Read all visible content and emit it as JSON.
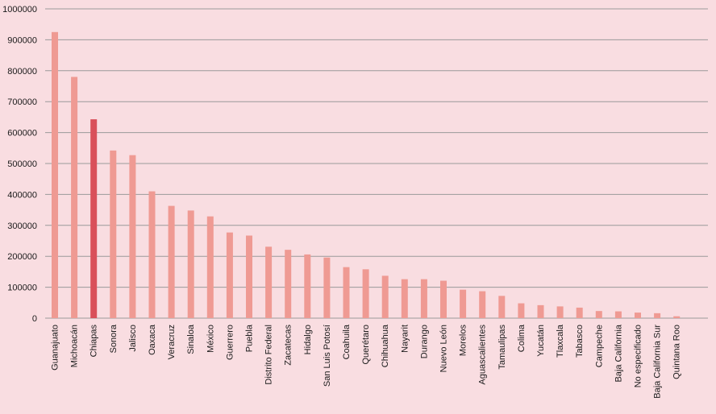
{
  "chart_data": {
    "type": "bar",
    "title": "",
    "xlabel": "",
    "ylabel": "",
    "ylim": [
      0,
      1000000
    ],
    "yticks": [
      0,
      100000,
      200000,
      300000,
      400000,
      500000,
      600000,
      700000,
      800000,
      900000,
      1000000
    ],
    "ytick_labels": [
      "0",
      "100000",
      "200000",
      "300000",
      "400000",
      "500000",
      "600000",
      "700000",
      "800000",
      "900000",
      "1000000"
    ],
    "grid": true,
    "legend": "none",
    "categories": [
      "Guanajuato",
      "Michoacán",
      "Chiapas",
      "Sonora",
      "Jalisco",
      "Oaxaca",
      "Veracruz",
      "Sinaloa",
      "México",
      "Guerrero",
      "Puebla",
      "Distrito Federal",
      "Zacatecas",
      "Hidalgo",
      "San Luis Potosí",
      "Coahuila",
      "Querétaro",
      "Chihuahua",
      "Nayarit",
      "Durango",
      "Nuevo León",
      "Morelos",
      "Aguascalientes",
      "Tamaulipas",
      "Colima",
      "Yucatán",
      "Tlaxcala",
      "Tabasco",
      "Campeche",
      "Baja California",
      "No especificado",
      "Baja California Sur",
      "Quintana Roo"
    ],
    "values": [
      925000,
      780000,
      643000,
      542000,
      527000,
      410000,
      363000,
      348000,
      329000,
      277000,
      267000,
      231000,
      221000,
      206000,
      196000,
      165000,
      158000,
      137000,
      126000,
      126000,
      121000,
      92000,
      87000,
      72000,
      48000,
      42000,
      38000,
      34000,
      23000,
      22000,
      18000,
      16000,
      6000
    ],
    "highlight_index": 2,
    "colors": {
      "bar": "#ef9a93",
      "highlight": "#d9505a",
      "grid": "#9a9a9a",
      "background": "#f9dde1",
      "text": "#1a1a1a"
    }
  }
}
